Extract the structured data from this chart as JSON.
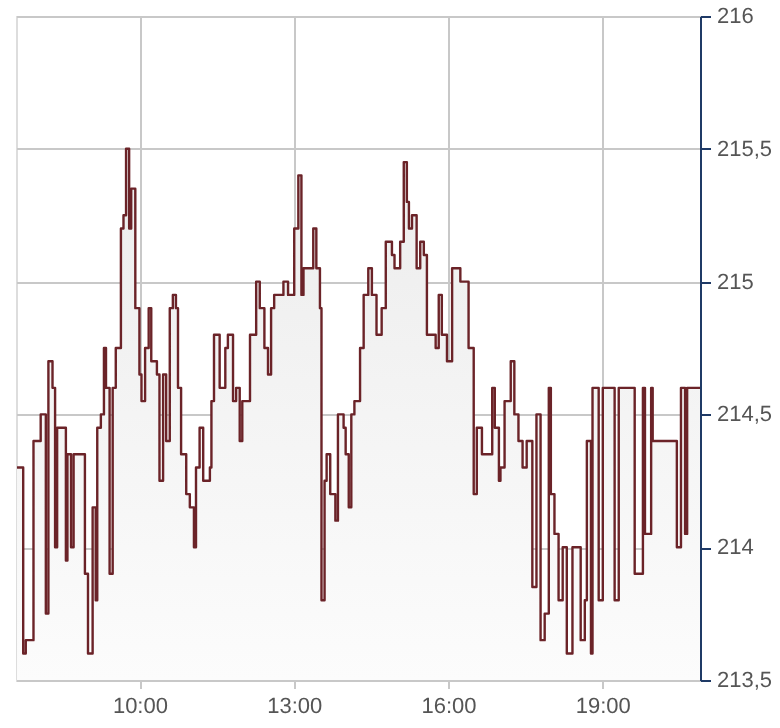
{
  "chart_data": {
    "type": "area",
    "xlim": [
      7.6,
      20.9
    ],
    "ylim": [
      213.5,
      216
    ],
    "xticks": [
      {
        "value": 10,
        "label": "10:00"
      },
      {
        "value": 13,
        "label": "13:00"
      },
      {
        "value": 16,
        "label": "16:00"
      },
      {
        "value": 19,
        "label": "19:00"
      }
    ],
    "yticks": [
      {
        "value": 213.5,
        "label": "213,5"
      },
      214,
      {
        "value": 214.5,
        "label": "214,5"
      },
      215,
      {
        "value": 215.5,
        "label": "215,5"
      },
      216
    ],
    "grid": true,
    "legend": false,
    "x": [
      7.62,
      7.74,
      7.74,
      7.79,
      7.79,
      7.94,
      7.94,
      8.08,
      8.08,
      8.18,
      8.18,
      8.23,
      8.23,
      8.31,
      8.31,
      8.36,
      8.36,
      8.4,
      8.4,
      8.57,
      8.57,
      8.6,
      8.6,
      8.67,
      8.67,
      8.72,
      8.72,
      8.94,
      8.94,
      9.0,
      9.0,
      9.09,
      9.09,
      9.15,
      9.15,
      9.18,
      9.18,
      9.25,
      9.25,
      9.31,
      9.31,
      9.35,
      9.35,
      9.42,
      9.42,
      9.48,
      9.48,
      9.54,
      9.54,
      9.64,
      9.64,
      9.69,
      9.69,
      9.74,
      9.74,
      9.8,
      9.8,
      9.84,
      9.84,
      9.92,
      9.92,
      10.0,
      10.0,
      10.04,
      10.04,
      10.11,
      10.11,
      10.18,
      10.18,
      10.23,
      10.23,
      10.34,
      10.34,
      10.39,
      10.39,
      10.46,
      10.46,
      10.52,
      10.52,
      10.59,
      10.59,
      10.65,
      10.65,
      10.71,
      10.71,
      10.75,
      10.75,
      10.81,
      10.81,
      10.91,
      10.91,
      10.98,
      10.98,
      11.06,
      11.06,
      11.1,
      11.1,
      11.17,
      11.17,
      11.24,
      11.24,
      11.37,
      11.37,
      11.4,
      11.4,
      11.45,
      11.45,
      11.56,
      11.56,
      11.67,
      11.67,
      11.72,
      11.72,
      11.82,
      11.82,
      11.88,
      11.88,
      11.95,
      11.95,
      12.0,
      12.0,
      12.15,
      12.15,
      12.27,
      12.27,
      12.34,
      12.34,
      12.43,
      12.43,
      12.5,
      12.5,
      12.56,
      12.56,
      12.62,
      12.62,
      12.8,
      12.8,
      12.89,
      12.89,
      13.01,
      13.01,
      13.09,
      13.09,
      13.15,
      13.15,
      13.19,
      13.19,
      13.38,
      13.38,
      13.44,
      13.44,
      13.51,
      13.51,
      13.54,
      13.54,
      13.6,
      13.6,
      13.64,
      13.64,
      13.71,
      13.71,
      13.81,
      13.81,
      13.86,
      13.86,
      13.97,
      13.97,
      14.01,
      14.01,
      14.07,
      14.07,
      14.12,
      14.12,
      14.18,
      14.18,
      14.29,
      14.29,
      14.36,
      14.36,
      14.45,
      14.45,
      14.52,
      14.52,
      14.61,
      14.61,
      14.71,
      14.71,
      14.79,
      14.79,
      14.91,
      14.91,
      14.96,
      14.96,
      15.07,
      15.07,
      15.14,
      15.14,
      15.2,
      15.2,
      15.24,
      15.24,
      15.3,
      15.3,
      15.39,
      15.39,
      15.46,
      15.46,
      15.53,
      15.53,
      15.59,
      15.59,
      15.76,
      15.76,
      15.82,
      15.82,
      15.88,
      15.88,
      15.98,
      15.98,
      16.08,
      16.08,
      16.24,
      16.24,
      16.4,
      16.4,
      16.5,
      16.5,
      16.56,
      16.56,
      16.66,
      16.66,
      16.86,
      16.86,
      16.91,
      16.91,
      16.99,
      16.99,
      17.02,
      17.02,
      17.1,
      17.1,
      17.22,
      17.22,
      17.29,
      17.29,
      17.37,
      17.37,
      17.45,
      17.45,
      17.53,
      17.53,
      17.64,
      17.64,
      17.72,
      17.72,
      17.8,
      17.8,
      17.88,
      17.88,
      17.96,
      17.96,
      18.0,
      18.0,
      18.07,
      18.07,
      18.15,
      18.15,
      18.23,
      18.23,
      18.31,
      18.31,
      18.42,
      18.42,
      18.58,
      18.58,
      18.66,
      18.66,
      18.7,
      18.7,
      18.78,
      18.78,
      18.81,
      18.81,
      18.93,
      18.93,
      19.01,
      19.01,
      19.24,
      19.24,
      19.32,
      19.32,
      19.63,
      19.63,
      19.79,
      19.79,
      19.83,
      19.83,
      19.95,
      19.95,
      19.98,
      19.98,
      20.25,
      20.25,
      20.45,
      20.45,
      20.53,
      20.53,
      20.61,
      20.61,
      20.65,
      20.65,
      20.9,
      20.9
    ],
    "series": [
      {
        "color": "#6b2328",
        "values": [
          214.3,
          214.3,
          213.6,
          213.6,
          213.65,
          213.65,
          214.4,
          214.4,
          214.5,
          214.5,
          213.75,
          213.75,
          214.7,
          214.7,
          214.6,
          214.6,
          214.0,
          214.0,
          214.45,
          214.45,
          213.95,
          213.95,
          214.35,
          214.35,
          214.0,
          214.0,
          214.35,
          214.35,
          213.9,
          213.9,
          213.6,
          213.6,
          214.15,
          214.15,
          213.8,
          213.8,
          214.45,
          214.45,
          214.5,
          214.5,
          214.75,
          214.75,
          214.6,
          214.6,
          213.9,
          213.9,
          214.6,
          214.6,
          214.75,
          214.75,
          215.2,
          215.2,
          215.25,
          215.25,
          215.5,
          215.5,
          215.2,
          215.2,
          215.35,
          215.35,
          214.9,
          214.9,
          214.65,
          214.65,
          214.55,
          214.55,
          214.75,
          214.75,
          214.9,
          214.9,
          214.7,
          214.7,
          214.65,
          214.65,
          214.25,
          214.25,
          214.65,
          214.65,
          214.4,
          214.4,
          214.9,
          214.9,
          214.95,
          214.95,
          214.9,
          214.9,
          214.6,
          214.6,
          214.35,
          214.35,
          214.2,
          214.2,
          214.15,
          214.15,
          214.0,
          214.0,
          214.3,
          214.3,
          214.45,
          214.45,
          214.25,
          214.25,
          214.3,
          214.3,
          214.55,
          214.55,
          214.8,
          214.8,
          214.6,
          214.6,
          214.75,
          214.75,
          214.8,
          214.8,
          214.55,
          214.55,
          214.6,
          214.6,
          214.4,
          214.4,
          214.55,
          214.55,
          214.8,
          214.8,
          215.0,
          215.0,
          214.9,
          214.9,
          214.75,
          214.75,
          214.65,
          214.65,
          214.9,
          214.9,
          214.95,
          214.95,
          215.0,
          215.0,
          214.95,
          214.95,
          215.2,
          215.2,
          215.4,
          215.4,
          214.95,
          214.95,
          215.05,
          215.05,
          215.2,
          215.2,
          215.05,
          215.05,
          214.9,
          214.9,
          213.8,
          213.8,
          214.25,
          214.25,
          214.35,
          214.35,
          214.2,
          214.2,
          214.1,
          214.1,
          214.5,
          214.5,
          214.45,
          214.45,
          214.35,
          214.35,
          214.15,
          214.15,
          214.5,
          214.5,
          214.55,
          214.55,
          214.75,
          214.75,
          214.95,
          214.95,
          215.05,
          215.05,
          214.95,
          214.95,
          214.8,
          214.8,
          214.9,
          214.9,
          215.15,
          215.15,
          215.1,
          215.1,
          215.05,
          215.05,
          215.15,
          215.15,
          215.45,
          215.45,
          215.3,
          215.3,
          215.2,
          215.2,
          215.25,
          215.25,
          215.05,
          215.05,
          215.15,
          215.15,
          215.1,
          215.1,
          214.8,
          214.8,
          214.75,
          214.75,
          214.95,
          214.95,
          214.8,
          214.8,
          214.7,
          214.7,
          215.05,
          215.05,
          215.0,
          215.0,
          214.75,
          214.75,
          214.2,
          214.2,
          214.45,
          214.45,
          214.35,
          214.35,
          214.6,
          214.6,
          214.45,
          214.45,
          214.25,
          214.25,
          214.3,
          214.3,
          214.55,
          214.55,
          214.7,
          214.7,
          214.5,
          214.5,
          214.4,
          214.4,
          214.3,
          214.3,
          214.4,
          214.4,
          213.85,
          213.85,
          214.5,
          214.5,
          213.65,
          213.65,
          213.75,
          213.75,
          214.6,
          214.6,
          214.2,
          214.2,
          214.05,
          214.05,
          213.8,
          213.8,
          214.0,
          214.0,
          213.6,
          213.6,
          214.0,
          214.0,
          213.65,
          213.65,
          213.8,
          213.8,
          214.4,
          214.4,
          213.6,
          213.6,
          214.6,
          214.6,
          213.8,
          213.8,
          214.6,
          214.6,
          213.8,
          213.8,
          214.6,
          214.6,
          213.9,
          213.9,
          214.6,
          214.6,
          214.05,
          214.05,
          214.6,
          214.6,
          214.4,
          214.4,
          214.4,
          214.4,
          214.0,
          214.0,
          214.6,
          214.6,
          214.05,
          214.05,
          214.6,
          214.6,
          214.6
        ]
      }
    ]
  }
}
